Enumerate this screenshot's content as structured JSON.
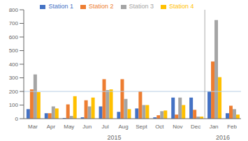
{
  "chart_data": {
    "type": "bar",
    "categories": [
      "Mar",
      "Apr",
      "May",
      "Jun",
      "Jul",
      "Aug",
      "Sept",
      "Oct",
      "Nov",
      "Dec",
      "Jan",
      "Feb"
    ],
    "series": [
      {
        "name": "Station 1",
        "color": "#4472c4",
        "values": [
          70,
          40,
          5,
          10,
          90,
          50,
          75,
          10,
          155,
          155,
          200,
          40
        ]
      },
      {
        "name": "Station 2",
        "color": "#ed7d31",
        "values": [
          215,
          40,
          105,
          135,
          290,
          290,
          200,
          25,
          30,
          65,
          420,
          95
        ]
      },
      {
        "name": "Station 3",
        "color": "#a5a5a5",
        "values": [
          325,
          90,
          20,
          90,
          210,
          145,
          100,
          55,
          155,
          15,
          725,
          70
        ]
      },
      {
        "name": "Station 4",
        "color": "#ffc000",
        "values": [
          195,
          75,
          165,
          155,
          215,
          70,
          100,
          60,
          100,
          15,
          305,
          30
        ]
      }
    ],
    "ylim": [
      0,
      800
    ],
    "yticks": [
      0,
      100,
      200,
      300,
      400,
      500,
      600,
      700,
      800
    ],
    "legend": "top",
    "reference_lines": [
      {
        "y": 200,
        "color": "#b8cfe4"
      }
    ],
    "x_groups": {
      "color": "#888888",
      "groups": [
        {
          "label": "2015",
          "first": "Mar"
        },
        {
          "label": "2016",
          "first": "Jan"
        }
      ]
    }
  }
}
